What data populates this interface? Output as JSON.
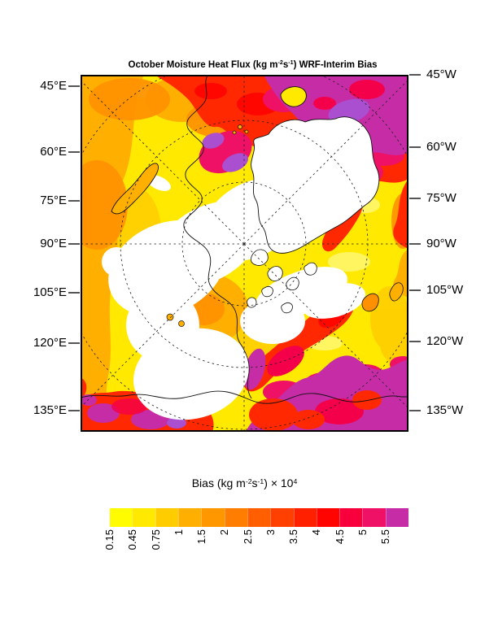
{
  "palette": {
    "white": "#FFFFFF",
    "yellow_base": "#FFE900",
    "yellow_light": "#FFF97A",
    "gold": "#FFCC00",
    "orange": "#FFAF00",
    "orange_deep": "#FF9000",
    "red": "#FF2800",
    "red_core": "#FF0400",
    "crimson": "#F4004A",
    "pink": "#EE1166",
    "magenta": "#C62CA6",
    "purple": "#A94FD0"
  },
  "figure_title": {
    "parts": [
      {
        "t": "October Moisture Heat Flux (kg m"
      },
      {
        "t": "-2",
        "sup": true
      },
      {
        "t": "s"
      },
      {
        "t": "-1",
        "sup": true
      },
      {
        "t": ") WRF-Interim Bias"
      }
    ]
  },
  "map": {
    "left_labels": [
      "45°E",
      "60°E",
      "75°E",
      "90°E",
      "105°E",
      "120°E",
      "135°E"
    ],
    "right_labels": [
      "45°W",
      "60°W",
      "75°W",
      "90°W",
      "105°W",
      "120°W",
      "135°W"
    ]
  },
  "colorbar": {
    "label_parts": [
      {
        "t": "Bias (kg m"
      },
      {
        "t": "-2",
        "sup": true
      },
      {
        "t": "s"
      },
      {
        "t": "-1",
        "sup": true
      },
      {
        "t": ") × 10"
      },
      {
        "t": "4",
        "sup": true
      }
    ],
    "ticks": [
      "0.15",
      "0.45",
      "0.75",
      "1",
      "1.5",
      "2",
      "2.5",
      "3",
      "3.5",
      "4",
      "4.5",
      "5",
      "5.5"
    ],
    "colors": [
      "#FFFC00",
      "#FFE900",
      "#FFCC00",
      "#FFAF00",
      "#FF9700",
      "#FF7D00",
      "#FF5F00",
      "#FF4000",
      "#FF2000",
      "#FF0400",
      "#F8003C",
      "#EE1166",
      "#C62CA6"
    ]
  },
  "chart_data": {
    "type": "heatmap",
    "title": "October Moisture Heat Flux (kg m-2s-1) WRF-Interim Bias",
    "colorbar_label": "Bias (kg m-2s-1) × 10^4",
    "projection": "polar stereographic, Arctic, square frame",
    "contour_levels": [
      0.15,
      0.45,
      0.75,
      1,
      1.5,
      2,
      2.5,
      3,
      3.5,
      4,
      4.5,
      5,
      5.5
    ],
    "level_colors": [
      "#FFFC00",
      "#FFE900",
      "#FFCC00",
      "#FFAF00",
      "#FF9700",
      "#FF7D00",
      "#FF5F00",
      "#FF4000",
      "#FF2000",
      "#FF0400",
      "#F8003C",
      "#EE1166",
      "#C62CA6"
    ],
    "below_min_color": "#FFFFFF",
    "meridian_labels_left": [
      "45°E",
      "60°E",
      "75°E",
      "90°E",
      "105°E",
      "120°E",
      "135°E"
    ],
    "meridian_labels_right": [
      "45°W",
      "60°W",
      "75°W",
      "90°W",
      "105°W",
      "120°W",
      "135°W"
    ],
    "grid": "dashed latitude circles and meridians radiating from the pole",
    "field_description": "White (bias < 0.15) over central Arctic Ocean, Greenland and Canadian Archipelago; yellow-orange over most seas; red band along the top (Barents/Norwegian sector); magenta (> 5.5) across the North Atlantic corner (top right), Bering/Pacific sector (bottom) and lower-left corner; scattered purple extremes near Svalbard sector and coasts."
  }
}
